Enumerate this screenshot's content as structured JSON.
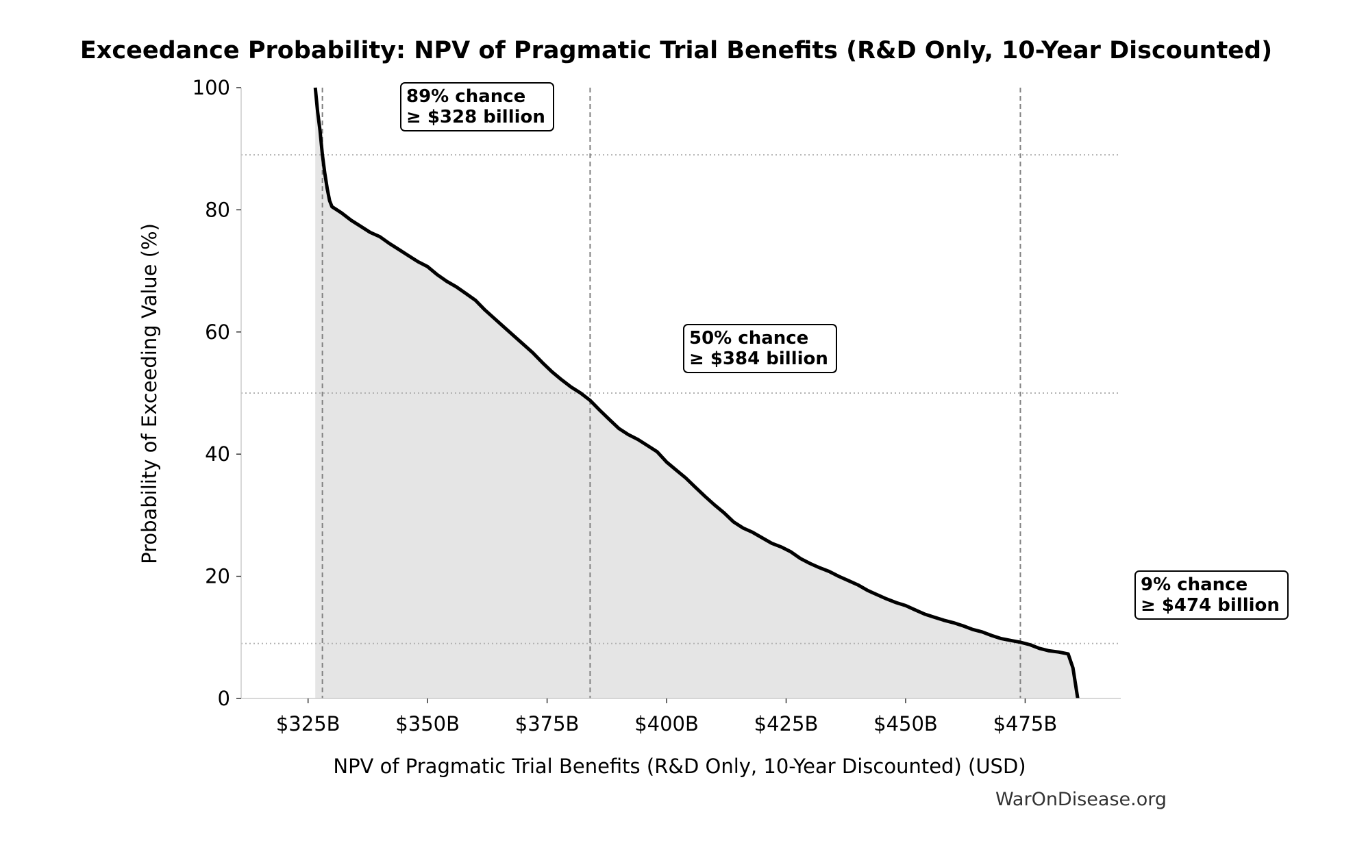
{
  "chart_data": {
    "type": "area",
    "title": "Exceedance Probability: NPV of Pragmatic Trial Benefits (R&D Only, 10-Year Discounted)",
    "xlabel": "NPV of Pragmatic Trial Benefits (R&D Only, 10-Year Discounted) (USD)",
    "ylabel": "Probability of Exceeding Value (%)",
    "xlim": [
      311,
      495
    ],
    "ylim": [
      0,
      100
    ],
    "x_ticks": [
      {
        "value": 325,
        "label": "$325B"
      },
      {
        "value": 350,
        "label": "$350B"
      },
      {
        "value": 375,
        "label": "$375B"
      },
      {
        "value": 400,
        "label": "$400B"
      },
      {
        "value": 425,
        "label": "$425B"
      },
      {
        "value": 450,
        "label": "$450B"
      },
      {
        "value": 475,
        "label": "$475B"
      }
    ],
    "y_ticks": [
      {
        "value": 0,
        "label": "0"
      },
      {
        "value": 20,
        "label": "20"
      },
      {
        "value": 40,
        "label": "40"
      },
      {
        "value": 60,
        "label": "60"
      },
      {
        "value": 80,
        "label": "80"
      },
      {
        "value": 100,
        "label": "100"
      }
    ],
    "series": [
      {
        "x": [
          326.5,
          327.0,
          327.5,
          328.0,
          328.5,
          329.0,
          329.5,
          330.0,
          331.0,
          332.0,
          334.0,
          336.0,
          338.0,
          340.0,
          342.0,
          344.0,
          346.0,
          348.0,
          350.0,
          352.0,
          354.0,
          356.0,
          358.0,
          360.0,
          362.0,
          364.0,
          366.0,
          368.0,
          370.0,
          372.0,
          374.0,
          376.0,
          378.0,
          380.0,
          382.0,
          384.0,
          386.0,
          388.0,
          390.0,
          392.0,
          394.0,
          396.0,
          398.0,
          400.0,
          402.0,
          404.0,
          406.0,
          408.0,
          410.0,
          412.0,
          414.0,
          416.0,
          418.0,
          420.0,
          422.0,
          424.0,
          426.0,
          428.0,
          430.0,
          432.0,
          434.0,
          436.0,
          438.0,
          440.0,
          442.0,
          444.0,
          446.0,
          448.0,
          450.0,
          452.0,
          454.0,
          456.0,
          458.0,
          460.0,
          462.0,
          464.0,
          466.0,
          468.0,
          470.0,
          472.0,
          474.0,
          476.0,
          478.0,
          480.0,
          482.0,
          484.0,
          485.0,
          485.5,
          486.0
        ],
        "y": [
          100,
          96,
          93,
          89,
          86,
          83.5,
          81.5,
          80.5,
          80,
          79.5,
          78.3,
          77.3,
          76.3,
          75.6,
          74.5,
          73.5,
          72.5,
          71.5,
          70.7,
          69.4,
          68.3,
          67.4,
          66.3,
          65.2,
          63.6,
          62.2,
          60.8,
          59.4,
          58,
          56.6,
          55,
          53.5,
          52.2,
          51,
          50,
          48.8,
          47.2,
          45.7,
          44.2,
          43.2,
          42.4,
          41.4,
          40.4,
          38.7,
          37.4,
          36.1,
          34.6,
          33.1,
          31.7,
          30.4,
          28.9,
          27.9,
          27.2,
          26.3,
          25.4,
          24.8,
          24,
          22.9,
          22.1,
          21.4,
          20.8,
          20,
          19.3,
          18.6,
          17.7,
          17,
          16.3,
          15.7,
          15.2,
          14.5,
          13.8,
          13.3,
          12.8,
          12.4,
          11.9,
          11.3,
          10.9,
          10.3,
          9.8,
          9.5,
          9.2,
          8.8,
          8.2,
          7.8,
          7.6,
          7.3,
          5,
          2.5,
          0
        ]
      }
    ],
    "reference_lines": {
      "vertical": [
        328,
        384,
        474
      ],
      "horizontal": [
        89,
        50,
        9
      ]
    },
    "annotations": [
      {
        "line1": "89% chance",
        "line2": "≥ $328 billion"
      },
      {
        "line1": "50% chance",
        "line2": "≥ $384 billion"
      },
      {
        "line1": "9% chance",
        "line2": "≥ $474 billion"
      }
    ],
    "grid": false,
    "colors": {
      "line": "#000000",
      "fill": "#e5e5e5",
      "vline": "#808080",
      "hline": "#b0b0b0",
      "axis": "#cccccc"
    },
    "watermark": "WarOnDisease.org"
  }
}
